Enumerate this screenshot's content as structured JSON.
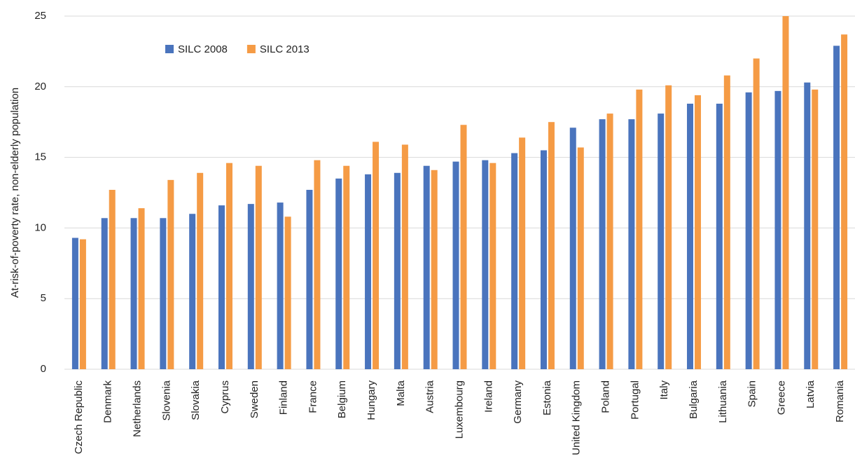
{
  "chart_data": {
    "type": "bar",
    "y_label": "At-risk-of-poverty rate, non-elderly population",
    "categories": [
      "Czech Republic",
      "Denmark",
      "Netherlands",
      "Slovenia",
      "Slovakia",
      "Cyprus",
      "Sweden",
      "Finland",
      "France",
      "Belgium",
      "Hungary",
      "Malta",
      "Austria",
      "Luxembourg",
      "Ireland",
      "Germany",
      "Estonia",
      "United Kingdom",
      "Poland",
      "Portugal",
      "Italy",
      "Bulgaria",
      "Lithuania",
      "Spain",
      "Greece",
      "Latvia",
      "Romania"
    ],
    "series": [
      {
        "name": "SILC 2008",
        "color": "#4a74bd",
        "values": [
          9.3,
          10.7,
          10.7,
          10.7,
          11.0,
          11.6,
          11.7,
          11.8,
          12.7,
          13.5,
          13.8,
          13.9,
          14.4,
          14.7,
          14.8,
          15.3,
          15.5,
          17.1,
          17.7,
          17.7,
          18.1,
          18.8,
          18.8,
          19.6,
          19.7,
          20.3,
          22.9
        ]
      },
      {
        "name": "SILC 2013",
        "color": "#f59b45",
        "values": [
          9.2,
          12.7,
          11.4,
          13.4,
          13.9,
          14.6,
          14.4,
          10.8,
          14.8,
          14.4,
          16.1,
          15.9,
          14.1,
          17.3,
          14.6,
          16.4,
          17.5,
          15.7,
          18.1,
          19.8,
          20.1,
          19.4,
          20.8,
          22.0,
          25.0,
          19.8,
          23.7
        ]
      }
    ],
    "ylim": [
      0,
      25
    ],
    "yticks": [
      0,
      5,
      10,
      15,
      20,
      25
    ],
    "grid": true
  }
}
